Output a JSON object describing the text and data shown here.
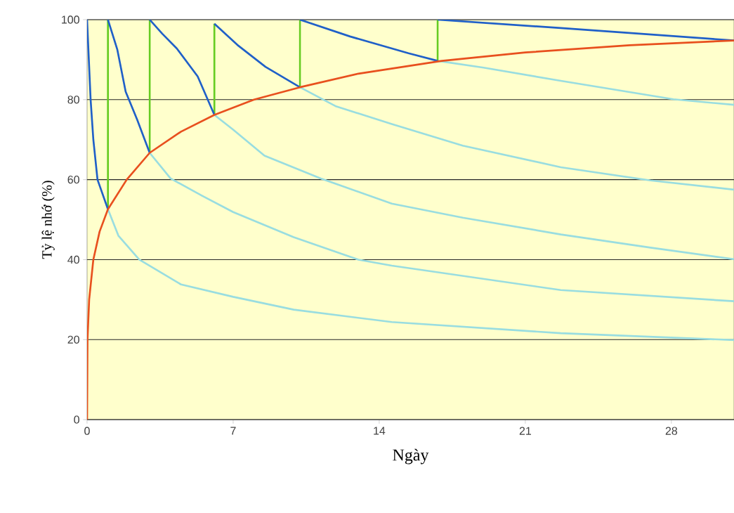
{
  "chart_data": {
    "type": "line",
    "xlabel": "Ngày",
    "ylabel": "Tỷ lệ nhớ (%)",
    "xlim": [
      0,
      31
    ],
    "ylim": [
      0,
      100
    ],
    "xticks": [
      0,
      7,
      14,
      21,
      28
    ],
    "yticks": [
      0,
      20,
      40,
      60,
      80,
      100
    ],
    "grid": "y",
    "marker": "none",
    "line_style": "solid",
    "series": [
      {
        "color": "#99dde0",
        "x": [
          1,
          1.5,
          2.5,
          4.5,
          7,
          9.9,
          14.6,
          22.7,
          31
        ],
        "values": [
          52.6,
          46,
          40,
          33.8,
          30.7,
          27.5,
          24.4,
          21.6,
          19.9
        ]
      },
      {
        "color": "#99dde0",
        "x": [
          3,
          4,
          5.5,
          7,
          9.9,
          13,
          14.6,
          22.7,
          31
        ],
        "values": [
          66.7,
          60.3,
          56,
          51.9,
          45.6,
          40,
          38.5,
          32.4,
          29.6
        ]
      },
      {
        "color": "#99dde0",
        "x": [
          6.1,
          7,
          8.5,
          11.2,
          14.6,
          18,
          22.7,
          27,
          31
        ],
        "values": [
          76.2,
          72.5,
          66,
          60.3,
          54,
          50.5,
          46.3,
          43,
          40.1
        ]
      },
      {
        "color": "#99dde0",
        "x": [
          10.2,
          11.9,
          14.6,
          18,
          22.7,
          27,
          31
        ],
        "values": [
          83.1,
          78.4,
          73.9,
          68.5,
          63.1,
          59.8,
          57.5
        ]
      },
      {
        "color": "#99dde0",
        "x": [
          16.8,
          19,
          22.7,
          28.1,
          31
        ],
        "values": [
          89.7,
          88,
          84.7,
          80.1,
          78.7
        ]
      },
      {
        "color": "#66cc22",
        "x": [
          1,
          1
        ],
        "values": [
          52.6,
          100
        ]
      },
      {
        "color": "#66cc22",
        "x": [
          3,
          3
        ],
        "values": [
          66.7,
          100
        ]
      },
      {
        "color": "#66cc22",
        "x": [
          6.1,
          6.1
        ],
        "values": [
          76.2,
          99
        ]
      },
      {
        "color": "#66cc22",
        "x": [
          10.2,
          10.2
        ],
        "values": [
          83.1,
          100
        ]
      },
      {
        "color": "#66cc22",
        "x": [
          16.8,
          16.8
        ],
        "values": [
          89.7,
          100
        ]
      },
      {
        "color": "#2060c8",
        "x": [
          0,
          0.05,
          0.17,
          0.3,
          0.5,
          1
        ],
        "values": [
          100,
          94,
          80,
          70,
          60,
          52.6
        ]
      },
      {
        "color": "#2060c8",
        "x": [
          1,
          1.45,
          1.85,
          2.4,
          3
        ],
        "values": [
          100,
          92.5,
          82,
          75,
          66.7
        ]
      },
      {
        "color": "#2060c8",
        "x": [
          3,
          3.6,
          4.3,
          5.3,
          6.1
        ],
        "values": [
          100,
          96.5,
          92.8,
          85.8,
          76.2
        ]
      },
      {
        "color": "#2060c8",
        "x": [
          6.1,
          7.2,
          8.55,
          10.2
        ],
        "values": [
          99,
          93.7,
          88.2,
          83.1
        ]
      },
      {
        "color": "#2060c8",
        "x": [
          10.2,
          12.6,
          15.4,
          16.8
        ],
        "values": [
          100,
          95.8,
          91.6,
          89.7
        ]
      },
      {
        "color": "#2060c8",
        "x": [
          16.8,
          22.7,
          31
        ],
        "values": [
          100,
          97.9,
          94.8
        ]
      },
      {
        "color": "#e8501e",
        "x": [
          0,
          0.02,
          0.1,
          0.3,
          0.6,
          1,
          1.9,
          3,
          4.5,
          6.1,
          8,
          10.2,
          13,
          17,
          21,
          26,
          31
        ],
        "values": [
          0,
          20,
          30,
          40,
          47,
          52.6,
          60,
          66.7,
          72,
          76.2,
          80,
          83.1,
          86.5,
          89.7,
          91.8,
          93.6,
          94.8
        ]
      }
    ]
  }
}
